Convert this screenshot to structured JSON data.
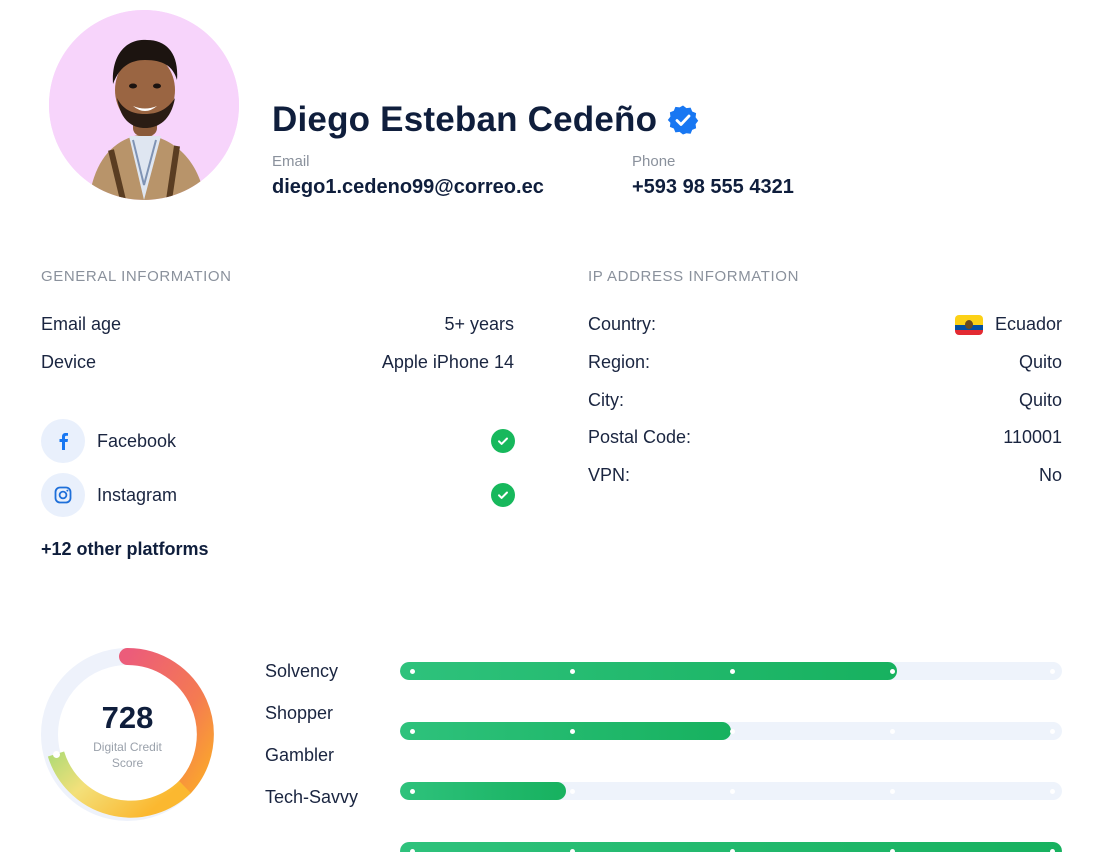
{
  "profile": {
    "name": "Diego Esteban Cedeño",
    "email_label": "Email",
    "email": "diego1.cedeno99@correo.ec",
    "phone_label": "Phone",
    "phone": "+593 98 555 4321"
  },
  "general": {
    "title": "GENERAL INFORMATION",
    "rows": [
      {
        "label": "Email age",
        "value": "5+ years"
      },
      {
        "label": "Device",
        "value": "Apple iPhone 14"
      }
    ],
    "socials": [
      {
        "name": "Facebook",
        "icon": "facebook-icon",
        "verified": true
      },
      {
        "name": "Instagram",
        "icon": "instagram-icon",
        "verified": true
      }
    ],
    "other_platforms": "+12 other platforms"
  },
  "ip": {
    "title": "IP ADDRESS INFORMATION",
    "rows": [
      {
        "label": "Country:",
        "value": "Ecuador"
      },
      {
        "label": "Region:",
        "value": "Quito"
      },
      {
        "label": "City:",
        "value": "Quito"
      },
      {
        "label": "Postal Code:",
        "value": "110001"
      },
      {
        "label": "VPN:",
        "value": "No"
      }
    ]
  },
  "score": {
    "value": "728",
    "label": "Digital Credit Score"
  },
  "traits": [
    {
      "label": "Solvency",
      "level": 0.75
    },
    {
      "label": "Shopper",
      "level": 0.5
    },
    {
      "label": "Gambler",
      "level": 0.25
    },
    {
      "label": "Tech-Savvy",
      "level": 1.0
    }
  ],
  "colors": {
    "verified": "#1877f2",
    "check": "#17b85c",
    "bar_fill": "#1fb866",
    "bar_track": "#eef3fb"
  }
}
